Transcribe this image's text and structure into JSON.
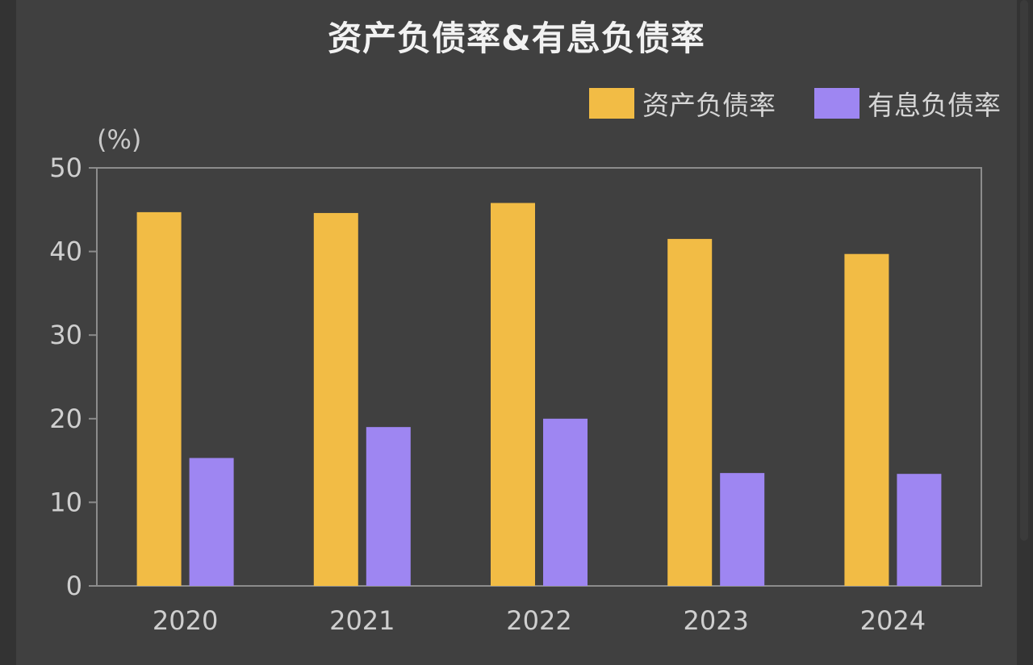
{
  "colors": {
    "background": "#404040",
    "series1": "#F2BC45",
    "series2": "#9E86F2",
    "axis": "#8c8c8c",
    "text": "#cfcfcf"
  },
  "chart_data": {
    "type": "bar",
    "title": "资产负债率&有息负债率",
    "unit_label": "(%)",
    "categories": [
      "2020",
      "2021",
      "2022",
      "2023",
      "2024"
    ],
    "series": [
      {
        "name": "资产负债率",
        "values": [
          44.7,
          44.6,
          45.8,
          41.5,
          39.7
        ]
      },
      {
        "name": "有息负债率",
        "values": [
          15.3,
          19.0,
          20.0,
          13.5,
          13.4
        ]
      }
    ],
    "ylim": [
      0,
      50
    ],
    "yticks": [
      0,
      10,
      20,
      30,
      40,
      50
    ],
    "legend_position": "top-right",
    "grid": false
  }
}
